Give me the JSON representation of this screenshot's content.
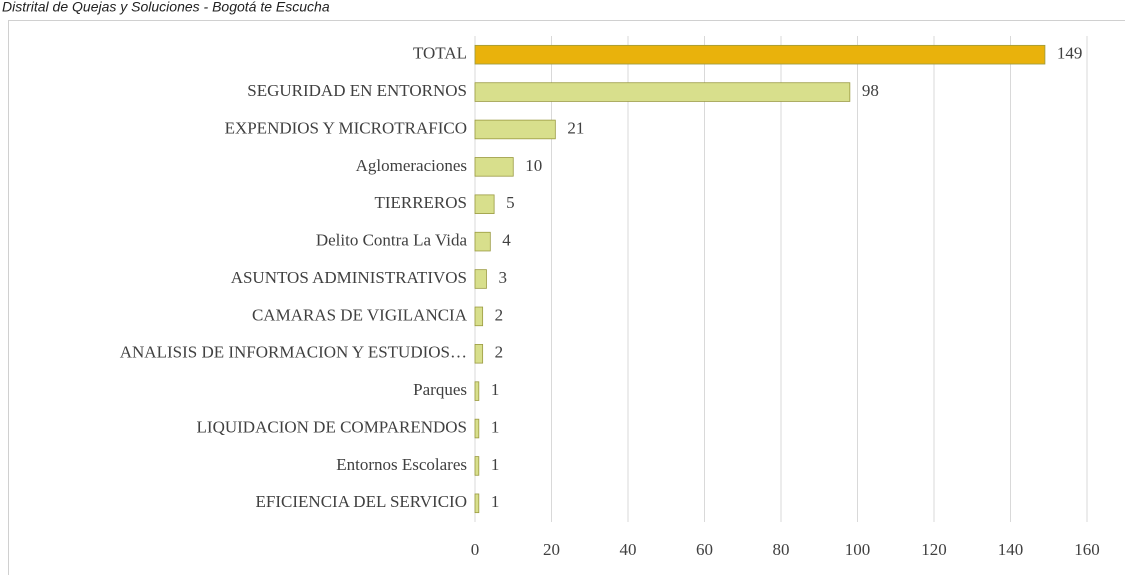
{
  "chart_data": {
    "type": "bar",
    "orientation": "horizontal",
    "caption": "Distrital de Quejas y Soluciones - Bogotá te Escucha",
    "categories": [
      "TOTAL",
      "SEGURIDAD EN ENTORNOS",
      "EXPENDIOS Y MICROTRAFICO",
      "Aglomeraciones",
      "TIERREROS",
      "Delito Contra La Vida",
      "ASUNTOS ADMINISTRATIVOS",
      "CAMARAS DE VIGILANCIA",
      "ANALISIS DE INFORMACION Y ESTUDIOS…",
      "Parques",
      "LIQUIDACION DE COMPARENDOS",
      "Entornos Escolares",
      "EFICIENCIA DEL SERVICIO"
    ],
    "values": [
      149,
      98,
      21,
      10,
      5,
      4,
      3,
      2,
      2,
      1,
      1,
      1,
      1
    ],
    "colors": [
      "#e9b20c",
      "#d8df8c",
      "#d8df8c",
      "#d8df8c",
      "#d8df8c",
      "#d8df8c",
      "#d8df8c",
      "#d8df8c",
      "#d8df8c",
      "#d8df8c",
      "#d8df8c",
      "#d8df8c",
      "#d8df8c"
    ],
    "xlim": [
      0,
      160
    ],
    "xticks": [
      0,
      20,
      40,
      60,
      80,
      100,
      120,
      140,
      160
    ],
    "grid": true
  }
}
